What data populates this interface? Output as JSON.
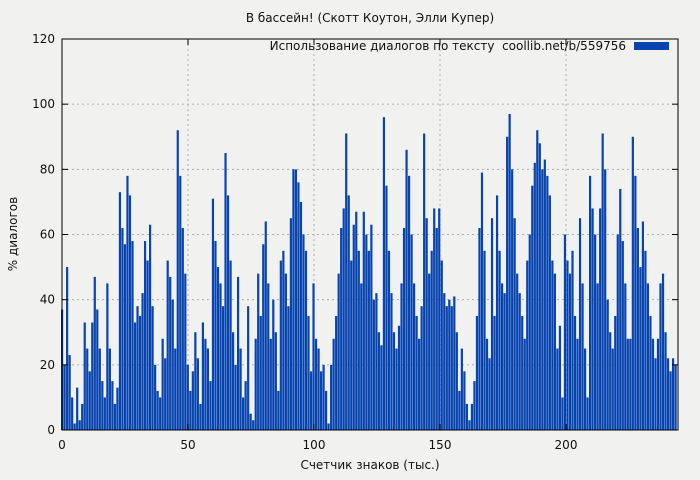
{
  "title": "В бассейн! (Скотт Коутон, Элли Купер)",
  "legend": {
    "label": "Использование диалогов по тексту  coollib.net/b/559756",
    "swatch_color": "#0844b0",
    "position": "top-right"
  },
  "axes": {
    "xlabel": "Счетчик знаков (тыс.)",
    "ylabel": "% диалогов",
    "xticks": [
      0,
      50,
      100,
      150,
      200
    ],
    "yticks": [
      0,
      20,
      40,
      60,
      80,
      100,
      120
    ]
  },
  "colors": {
    "bar": "#0844b0",
    "background": "#f1f1ef",
    "grid": "#b0b0b0",
    "border": "#000000",
    "text": "#111111"
  },
  "chart_data": {
    "type": "bar",
    "title": "В бассейн! (Скотт Коутон, Элли Купер)",
    "xlabel": "Счетчик знаков (тыс.)",
    "ylabel": "% диалогов",
    "series_name": "Использование диалогов по тексту coollib.net/b/559756",
    "xlim": [
      0,
      245
    ],
    "ylim": [
      0,
      120
    ],
    "grid": true,
    "legend_position": "top-right",
    "x_start": 0,
    "x_step": 1,
    "values": [
      37,
      20,
      50,
      23,
      10,
      2,
      13,
      3,
      8,
      33,
      25,
      18,
      33,
      47,
      37,
      25,
      15,
      10,
      45,
      25,
      15,
      8,
      13,
      73,
      62,
      57,
      78,
      72,
      58,
      33,
      38,
      35,
      42,
      58,
      52,
      63,
      38,
      20,
      12,
      10,
      28,
      22,
      52,
      47,
      40,
      25,
      92,
      78,
      62,
      48,
      20,
      12,
      18,
      30,
      22,
      8,
      33,
      28,
      25,
      15,
      71,
      58,
      50,
      45,
      38,
      85,
      72,
      52,
      30,
      20,
      47,
      25,
      10,
      15,
      38,
      5,
      3,
      28,
      48,
      35,
      57,
      64,
      45,
      28,
      40,
      30,
      12,
      52,
      55,
      48,
      38,
      65,
      80,
      80,
      76,
      70,
      60,
      55,
      35,
      18,
      45,
      28,
      25,
      18,
      20,
      12,
      2,
      20,
      28,
      35,
      48,
      62,
      68,
      91,
      72,
      52,
      63,
      67,
      55,
      45,
      67,
      60,
      55,
      63,
      40,
      42,
      30,
      26,
      96,
      75,
      55,
      42,
      30,
      25,
      32,
      45,
      62,
      86,
      78,
      60,
      45,
      35,
      28,
      38,
      91,
      65,
      48,
      55,
      68,
      62,
      68,
      52,
      42,
      38,
      40,
      38,
      41,
      30,
      12,
      25,
      18,
      8,
      3,
      8,
      15,
      35,
      62,
      79,
      55,
      28,
      22,
      65,
      35,
      72,
      55,
      45,
      42,
      90,
      97,
      80,
      65,
      48,
      42,
      35,
      28,
      52,
      60,
      75,
      82,
      92,
      88,
      80,
      83,
      78,
      72,
      52,
      48,
      25,
      32,
      10,
      60,
      52,
      48,
      55,
      35,
      28,
      65,
      45,
      25,
      10,
      78,
      68,
      60,
      45,
      68,
      91,
      80,
      40,
      30,
      25,
      35,
      60,
      74,
      58,
      45,
      28,
      28,
      90,
      78,
      62,
      50,
      64,
      55,
      45,
      35,
      28,
      22,
      28,
      45,
      48,
      30,
      22,
      18,
      22,
      20
    ]
  }
}
